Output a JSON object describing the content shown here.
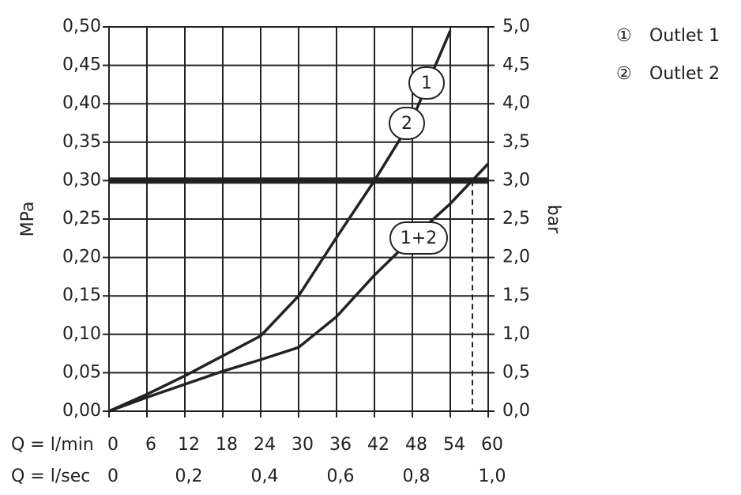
{
  "chart_data": {
    "type": "line",
    "x_axis_label": "Q = l/min",
    "x2_axis_label": "Q = l/sec",
    "y_axis_label": "MPa",
    "y2_axis_label": "bar",
    "x": [
      0,
      6,
      12,
      18,
      24,
      30,
      36,
      42,
      48,
      54,
      60
    ],
    "xlim": [
      0,
      60
    ],
    "xticks": [
      0,
      6,
      12,
      18,
      24,
      30,
      36,
      42,
      48,
      54,
      60
    ],
    "x2lim": [
      0,
      1
    ],
    "x2ticks": [
      0,
      {
        "value": 0.2,
        "label": "0,2"
      },
      {
        "value": 0.4,
        "label": "0,4"
      },
      {
        "value": 0.6,
        "label": "0,6"
      },
      {
        "value": 0.8,
        "label": "0,8"
      },
      {
        "value": 1.0,
        "label": "1,0"
      }
    ],
    "ylim": [
      0,
      0.5
    ],
    "yticks": [
      {
        "value": 0,
        "label": "0,00"
      },
      {
        "value": 0.05,
        "label": "0,05"
      },
      {
        "value": 0.1,
        "label": "0,10"
      },
      {
        "value": 0.15,
        "label": "0,15"
      },
      {
        "value": 0.2,
        "label": "0,20"
      },
      {
        "value": 0.25,
        "label": "0,25"
      },
      {
        "value": 0.3,
        "label": "0,30"
      },
      {
        "value": 0.35,
        "label": "0,35"
      },
      {
        "value": 0.4,
        "label": "0,40"
      },
      {
        "value": 0.45,
        "label": "0,45"
      },
      {
        "value": 0.5,
        "label": "0,50"
      }
    ],
    "y2lim": [
      0,
      5
    ],
    "y2ticks": [
      {
        "value": 0,
        "label": "0,0"
      },
      {
        "value": 0.5,
        "label": "0,5"
      },
      {
        "value": 1,
        "label": "1,0"
      },
      {
        "value": 1.5,
        "label": "1,5"
      },
      {
        "value": 2,
        "label": "2,0"
      },
      {
        "value": 2.5,
        "label": "2,5"
      },
      {
        "value": 3,
        "label": "3,0"
      },
      {
        "value": 3.5,
        "label": "3,5"
      },
      {
        "value": 4,
        "label": "4,0"
      },
      {
        "value": 4.5,
        "label": "4,5"
      },
      {
        "value": 5,
        "label": "5,0"
      }
    ],
    "grid": true,
    "hline": 0.3,
    "vlines": [
      42,
      57.5
    ],
    "series": [
      {
        "labels": [
          "1",
          "2"
        ],
        "color": "#222222",
        "values": [
          0,
          0.022,
          0.046,
          0.072,
          0.098,
          0.15,
          0.226,
          0.3,
          0.38,
          0.495,
          null
        ]
      },
      {
        "labels": [
          "1+2"
        ],
        "color": "#222222",
        "values": [
          0,
          0.018,
          0.035,
          0.052,
          0.067,
          0.083,
          0.123,
          0.177,
          0.225,
          0.27,
          0.322
        ]
      }
    ],
    "legend": [
      {
        "symbol": "①",
        "label": "Outlet 1"
      },
      {
        "symbol": "②",
        "label": "Outlet 2"
      }
    ]
  }
}
